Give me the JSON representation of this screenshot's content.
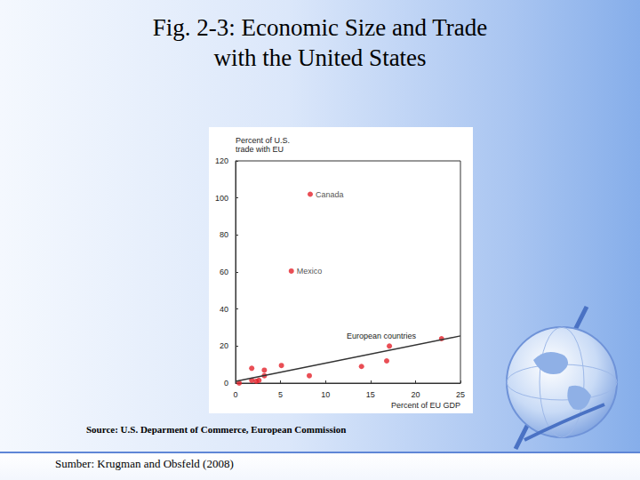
{
  "chart_data": {
    "type": "scatter",
    "title": "Fig. 2-3:  Economic Size and Trade\nwith the United States",
    "source": "Source: U.S. Deparment of Commerce, European Commission",
    "credit": "Sumber: Krugman and Obsfeld (2008)",
    "x_label": "Percent of EU GDP",
    "y_label": "Percent of U.S.\ntrade with EU",
    "xlim": [
      0,
      25
    ],
    "xticks": [
      0,
      5,
      10,
      15,
      20,
      25
    ],
    "ylim": [
      0,
      120
    ],
    "yticks": [
      0,
      20,
      40,
      60,
      80,
      100,
      120
    ],
    "grid": false,
    "series": [
      {
        "name": "Canada",
        "color": "#e3222b",
        "marker": "circle",
        "x": [
          8.3
        ],
        "values": [
          102
        ]
      },
      {
        "name": "Mexico",
        "color": "#e3222b",
        "marker": "circle",
        "x": [
          6.2
        ],
        "values": [
          60.5
        ]
      },
      {
        "name": "European countries",
        "color": "#e3222b",
        "marker": "circle",
        "x": [
          0.4,
          1.8,
          1.8,
          2.3,
          2.6,
          3.2,
          3.2,
          5.1,
          8.2,
          14,
          16.8,
          17.1,
          22.9
        ],
        "values": [
          0,
          8,
          1.5,
          1,
          1.5,
          7,
          4,
          9.5,
          4,
          9,
          12,
          20,
          24
        ],
        "trend_line": {
          "x": [
            0,
            25
          ],
          "values": [
            1,
            25.5
          ],
          "color": "#333333",
          "line_style": "solid"
        }
      }
    ]
  }
}
